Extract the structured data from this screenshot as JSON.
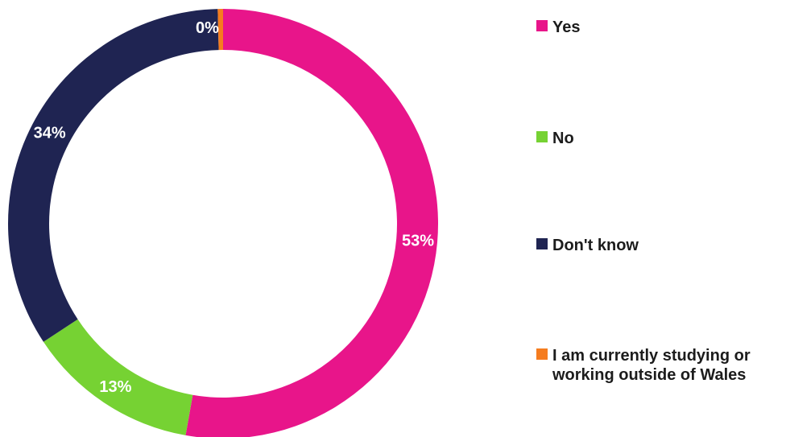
{
  "chart_data": {
    "type": "pie",
    "donut": true,
    "title": "",
    "categories": [
      "Yes",
      "No",
      "Don't know",
      "I am currently studying or working outside of Wales"
    ],
    "values": [
      53,
      13,
      34,
      0.4
    ],
    "labels": [
      "53%",
      "13%",
      "34%",
      "0%"
    ],
    "colors": [
      "#e8158a",
      "#76d233",
      "#1f2452",
      "#f57c1f"
    ],
    "legend": {
      "position": "right",
      "entries": [
        "Yes",
        "No",
        "Don't know",
        "I am currently studying or working outside of Wales"
      ]
    }
  }
}
